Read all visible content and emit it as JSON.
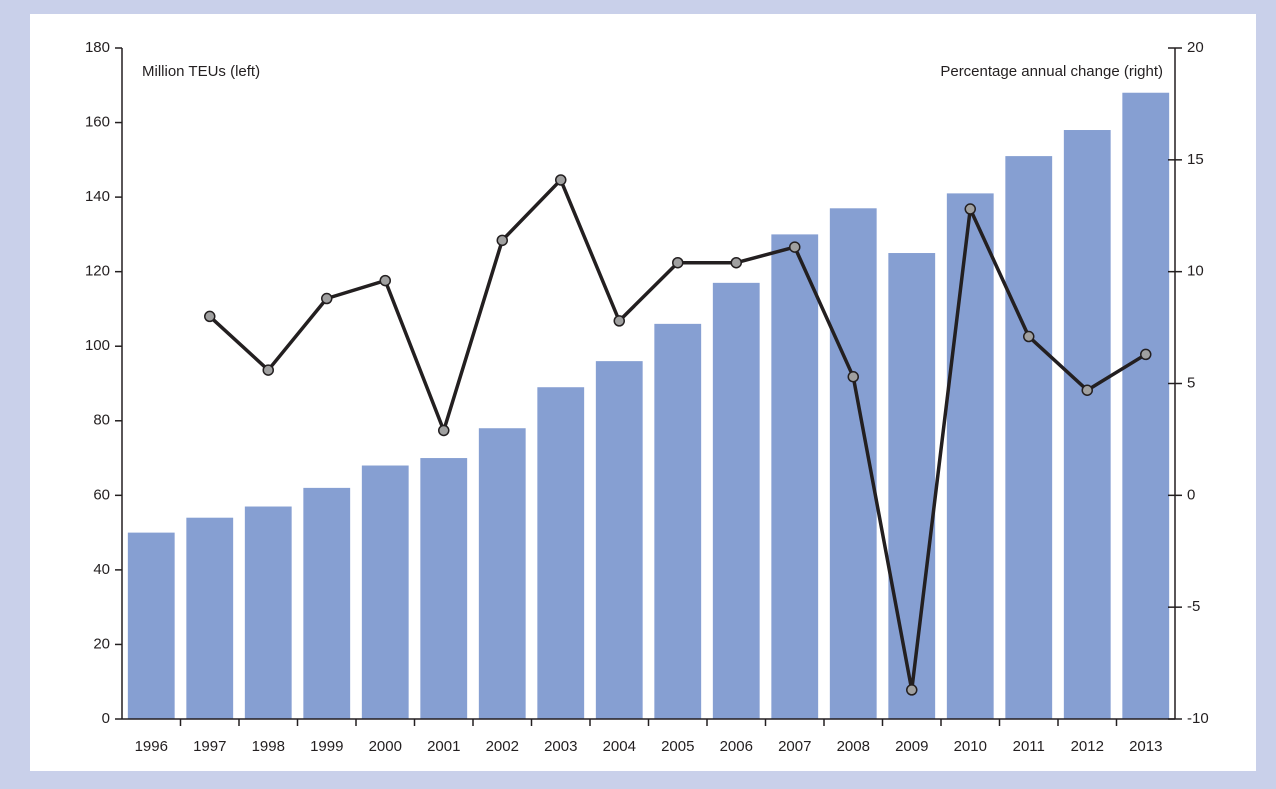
{
  "chart_data": {
    "type": "bar",
    "categories": [
      "1996",
      "1997",
      "1998",
      "1999",
      "2000",
      "2001",
      "2002",
      "2003",
      "2004",
      "2005",
      "2006",
      "2007",
      "2008",
      "2009",
      "2010",
      "2011",
      "2012",
      "2013"
    ],
    "series": [
      {
        "name": "Million TEUs (left)",
        "color": "#869fd2",
        "values": [
          50,
          54,
          57,
          62,
          68,
          70,
          78,
          89,
          96,
          106,
          117,
          130,
          137,
          125,
          141,
          151,
          158,
          168
        ]
      },
      {
        "name": "Percentage annual change (right)",
        "type": "line",
        "axis": "y2",
        "color": "#231f20",
        "values": [
          null,
          8.0,
          5.6,
          8.8,
          9.6,
          2.9,
          11.4,
          14.1,
          7.8,
          10.4,
          10.4,
          11.1,
          5.3,
          -8.7,
          12.8,
          7.1,
          4.7,
          6.3
        ]
      }
    ],
    "ylim": [
      0,
      180
    ],
    "yticks": [
      0,
      20,
      40,
      60,
      80,
      100,
      120,
      140,
      160,
      180
    ],
    "y2lim": [
      -10,
      20
    ],
    "y2ticks": [
      -10,
      -5,
      0,
      5,
      10,
      15,
      20
    ]
  }
}
